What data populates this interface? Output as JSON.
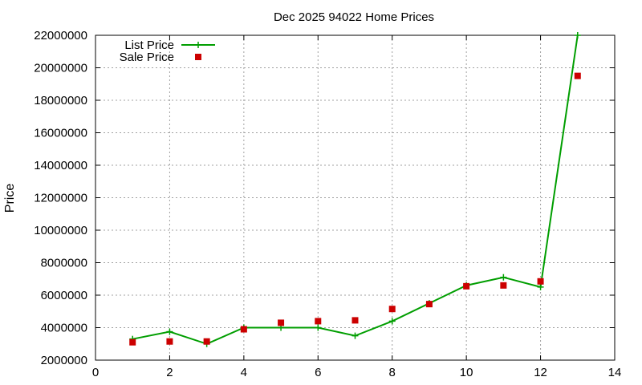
{
  "chart_data": {
    "type": "line",
    "title": "Dec 2025 94022 Home Prices",
    "xlabel": "",
    "ylabel": "Price",
    "xlim": [
      0,
      14
    ],
    "ylim": [
      2000000,
      22000000
    ],
    "xticks": [
      0,
      2,
      4,
      6,
      8,
      10,
      12,
      14
    ],
    "yticks": [
      2000000,
      4000000,
      6000000,
      8000000,
      10000000,
      12000000,
      14000000,
      16000000,
      18000000,
      20000000,
      22000000
    ],
    "grid": true,
    "legend_position": "top-left",
    "series": [
      {
        "name": "List Price",
        "style": "line-with-plus-markers",
        "color": "#009e00",
        "x": [
          1,
          2,
          3,
          4,
          5,
          6,
          7,
          8,
          9,
          10,
          11,
          12,
          13
        ],
        "y": [
          3300000,
          3750000,
          3000000,
          4000000,
          4000000,
          4000000,
          3500000,
          4400000,
          5500000,
          6600000,
          7100000,
          6500000,
          22000000
        ]
      },
      {
        "name": "Sale Price",
        "style": "square-markers",
        "color": "#cc0000",
        "x": [
          1,
          2,
          3,
          4,
          5,
          6,
          7,
          8,
          9,
          10,
          11,
          12,
          13
        ],
        "y": [
          3100000,
          3150000,
          3150000,
          3900000,
          4300000,
          4400000,
          4450000,
          5150000,
          5450000,
          6550000,
          6600000,
          6850000,
          19500000
        ]
      }
    ]
  }
}
